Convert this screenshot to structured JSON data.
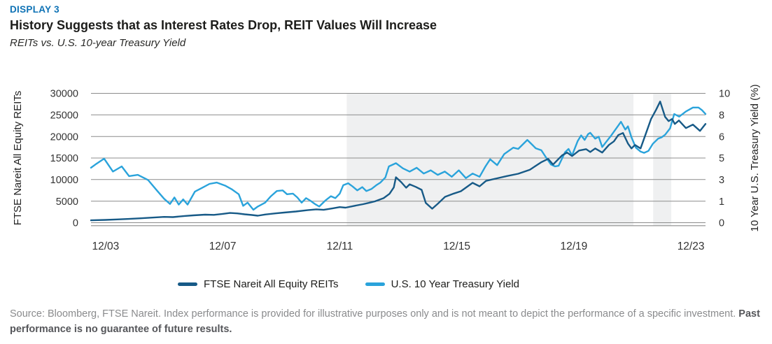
{
  "header": {
    "display_label": "DISPLAY 3",
    "title": "History Suggests that as Interest Rates Drop, REIT Values Will Increase",
    "subtitle": "REITs vs. U.S. 10-year Treasury Yield"
  },
  "legend": [
    {
      "label": "FTSE Nareit All Equity REITs",
      "color": "#175A87"
    },
    {
      "label": "U.S. 10 Year Treasury Yield",
      "color": "#2AA3DB"
    }
  ],
  "source": {
    "text": "Source: Bloomberg, FTSE Nareit. Index performance is provided for illustrative purposes only and is not meant to depict the performance of a specific investment. ",
    "bold_text": "Past performance is no guarantee of future results."
  },
  "chart_data": {
    "type": "line",
    "grid": true,
    "legend_position": "bottom",
    "colors": {
      "shade": "#EFF0F1",
      "grid": "#8C8C8C",
      "tick_text": "#333333",
      "axis_title": "#222222"
    },
    "x_axis": {
      "range": [
        -0.5,
        20.5
      ],
      "ticks": [
        {
          "t": 0,
          "label": "12/03"
        },
        {
          "t": 4,
          "label": "12/07"
        },
        {
          "t": 8,
          "label": "12/11"
        },
        {
          "t": 12,
          "label": "12/15"
        },
        {
          "t": 16,
          "label": "12/19"
        },
        {
          "t": 20,
          "label": "12/23"
        }
      ]
    },
    "left_axis": {
      "label": "FTSE Nareit All Equity REITs",
      "min": 0,
      "max": 30000,
      "ticks": [
        "0",
        "5000",
        "10000",
        "15000",
        "20000",
        "25000",
        "30000"
      ]
    },
    "right_axis": {
      "label": "10 Year U.S. Treasury Yield (%)",
      "min": 0,
      "max": 10,
      "ticks": [
        "0",
        "1",
        "3",
        "5",
        "6",
        "8",
        "10"
      ]
    },
    "shaded_regions": [
      {
        "t0": 8.24,
        "t1": 18.04
      },
      {
        "t0": 18.71,
        "t1": 19.33
      }
    ],
    "series": [
      {
        "name": "FTSE Nareit All Equity REITs",
        "axis": "left",
        "color": "#175A87",
        "points": [
          [
            -0.5,
            550
          ],
          [
            0,
            650
          ],
          [
            0.4,
            760
          ],
          [
            0.8,
            880
          ],
          [
            1.2,
            1020
          ],
          [
            1.6,
            1180
          ],
          [
            2,
            1350
          ],
          [
            2.3,
            1290
          ],
          [
            2.7,
            1550
          ],
          [
            3,
            1700
          ],
          [
            3.4,
            1870
          ],
          [
            3.7,
            1820
          ],
          [
            4,
            2050
          ],
          [
            4.25,
            2250
          ],
          [
            4.5,
            2150
          ],
          [
            4.75,
            1950
          ],
          [
            5,
            1780
          ],
          [
            5.2,
            1620
          ],
          [
            5.45,
            1900
          ],
          [
            5.8,
            2150
          ],
          [
            6.1,
            2350
          ],
          [
            6.5,
            2600
          ],
          [
            6.9,
            2900
          ],
          [
            7.2,
            3100
          ],
          [
            7.45,
            2980
          ],
          [
            7.75,
            3300
          ],
          [
            8,
            3620
          ],
          [
            8.2,
            3480
          ],
          [
            8.5,
            3900
          ],
          [
            8.8,
            4300
          ],
          [
            9,
            4600
          ],
          [
            9.2,
            4950
          ],
          [
            9.5,
            5700
          ],
          [
            9.7,
            6700
          ],
          [
            9.85,
            8200
          ],
          [
            9.92,
            10540
          ],
          [
            10.1,
            9400
          ],
          [
            10.27,
            8110
          ],
          [
            10.39,
            8900
          ],
          [
            10.6,
            8300
          ],
          [
            10.8,
            7620
          ],
          [
            10.94,
            4590
          ],
          [
            11.16,
            3240
          ],
          [
            11.35,
            4380
          ],
          [
            11.6,
            6000
          ],
          [
            11.9,
            6760
          ],
          [
            12.14,
            7300
          ],
          [
            12.54,
            9240
          ],
          [
            12.78,
            8430
          ],
          [
            13,
            9700
          ],
          [
            13.38,
            10300
          ],
          [
            13.7,
            10800
          ],
          [
            14.1,
            11350
          ],
          [
            14.5,
            12300
          ],
          [
            14.88,
            14000
          ],
          [
            15.12,
            14800
          ],
          [
            15.29,
            13500
          ],
          [
            15.6,
            15620
          ],
          [
            15.77,
            16270
          ],
          [
            15.94,
            15460
          ],
          [
            16.18,
            16730
          ],
          [
            16.42,
            17060
          ],
          [
            16.56,
            16400
          ],
          [
            16.73,
            17220
          ],
          [
            16.97,
            16270
          ],
          [
            17.2,
            18030
          ],
          [
            17.37,
            18860
          ],
          [
            17.52,
            20320
          ],
          [
            17.68,
            20810
          ],
          [
            17.85,
            18350
          ],
          [
            17.97,
            17220
          ],
          [
            18.09,
            18030
          ],
          [
            18.28,
            17220
          ],
          [
            18.47,
            20810
          ],
          [
            18.64,
            24050
          ],
          [
            18.81,
            26160
          ],
          [
            18.95,
            28100
          ],
          [
            19.12,
            24540
          ],
          [
            19.24,
            23560
          ],
          [
            19.36,
            24050
          ],
          [
            19.45,
            22900
          ],
          [
            19.59,
            23700
          ],
          [
            19.83,
            21940
          ],
          [
            20.07,
            22750
          ],
          [
            20.31,
            21290
          ],
          [
            20.5,
            22900
          ]
        ]
      },
      {
        "name": "U.S. 10 Year Treasury Yield",
        "axis": "right",
        "color": "#2AA3DB",
        "points": [
          [
            -0.5,
            4.25
          ],
          [
            -0.35,
            4.5
          ],
          [
            -0.05,
            4.95
          ],
          [
            0.25,
            3.95
          ],
          [
            0.55,
            4.35
          ],
          [
            0.8,
            3.6
          ],
          [
            1.1,
            3.7
          ],
          [
            1.45,
            3.3
          ],
          [
            1.75,
            2.5
          ],
          [
            2,
            1.85
          ],
          [
            2.2,
            1.45
          ],
          [
            2.35,
            1.95
          ],
          [
            2.5,
            1.4
          ],
          [
            2.65,
            1.8
          ],
          [
            2.8,
            1.4
          ],
          [
            3.05,
            2.4
          ],
          [
            3.3,
            2.7
          ],
          [
            3.55,
            3
          ],
          [
            3.8,
            3.1
          ],
          [
            4.1,
            2.85
          ],
          [
            4.3,
            2.6
          ],
          [
            4.55,
            2.2
          ],
          [
            4.7,
            1.3
          ],
          [
            4.85,
            1.55
          ],
          [
            5.05,
            1
          ],
          [
            5.2,
            1.25
          ],
          [
            5.45,
            1.55
          ],
          [
            5.65,
            2.05
          ],
          [
            5.85,
            2.45
          ],
          [
            6.05,
            2.5
          ],
          [
            6.2,
            2.2
          ],
          [
            6.4,
            2.25
          ],
          [
            6.55,
            1.95
          ],
          [
            6.7,
            1.55
          ],
          [
            6.85,
            1.9
          ],
          [
            7,
            1.7
          ],
          [
            7.15,
            1.45
          ],
          [
            7.3,
            1.25
          ],
          [
            7.5,
            1.7
          ],
          [
            7.7,
            2.05
          ],
          [
            7.85,
            1.9
          ],
          [
            8,
            2.25
          ],
          [
            8.12,
            2.9
          ],
          [
            8.29,
            3.05
          ],
          [
            8.44,
            2.8
          ],
          [
            8.6,
            2.5
          ],
          [
            8.77,
            2.75
          ],
          [
            8.91,
            2.45
          ],
          [
            9.08,
            2.6
          ],
          [
            9.25,
            2.9
          ],
          [
            9.39,
            3.1
          ],
          [
            9.56,
            3.5
          ],
          [
            9.68,
            4.35
          ],
          [
            9.92,
            4.6
          ],
          [
            10.16,
            4.2
          ],
          [
            10.39,
            3.95
          ],
          [
            10.63,
            4.25
          ],
          [
            10.87,
            3.8
          ],
          [
            11.11,
            4.05
          ],
          [
            11.35,
            3.7
          ],
          [
            11.59,
            3.95
          ],
          [
            11.83,
            3.55
          ],
          [
            12.07,
            4.05
          ],
          [
            12.31,
            3.45
          ],
          [
            12.54,
            3.8
          ],
          [
            12.78,
            3.55
          ],
          [
            12.98,
            4.35
          ],
          [
            13.14,
            4.9
          ],
          [
            13.38,
            4.45
          ],
          [
            13.62,
            5.3
          ],
          [
            13.93,
            5.8
          ],
          [
            14.1,
            5.7
          ],
          [
            14.41,
            6.4
          ],
          [
            14.7,
            5.75
          ],
          [
            14.89,
            5.6
          ],
          [
            15.05,
            5.05
          ],
          [
            15.22,
            4.5
          ],
          [
            15.36,
            4.35
          ],
          [
            15.48,
            4.4
          ],
          [
            15.7,
            5.45
          ],
          [
            15.82,
            5.7
          ],
          [
            15.94,
            5.2
          ],
          [
            16.13,
            6.3
          ],
          [
            16.25,
            6.75
          ],
          [
            16.37,
            6.4
          ],
          [
            16.49,
            6.85
          ],
          [
            16.56,
            6.95
          ],
          [
            16.73,
            6.5
          ],
          [
            16.85,
            6.65
          ],
          [
            16.97,
            5.85
          ],
          [
            17.09,
            6.2
          ],
          [
            17.28,
            6.75
          ],
          [
            17.5,
            7.45
          ],
          [
            17.61,
            7.8
          ],
          [
            17.76,
            7.2
          ],
          [
            17.85,
            7.45
          ],
          [
            17.97,
            6.6
          ],
          [
            18.12,
            5.8
          ],
          [
            18.28,
            5.5
          ],
          [
            18.4,
            5.4
          ],
          [
            18.55,
            5.55
          ],
          [
            18.7,
            6.1
          ],
          [
            18.88,
            6.5
          ],
          [
            19,
            6.6
          ],
          [
            19.12,
            6.8
          ],
          [
            19.29,
            7.3
          ],
          [
            19.43,
            8.4
          ],
          [
            19.6,
            8.2
          ],
          [
            19.83,
            8.6
          ],
          [
            20.07,
            8.9
          ],
          [
            20.26,
            8.9
          ],
          [
            20.38,
            8.7
          ],
          [
            20.5,
            8.4
          ]
        ]
      }
    ]
  }
}
